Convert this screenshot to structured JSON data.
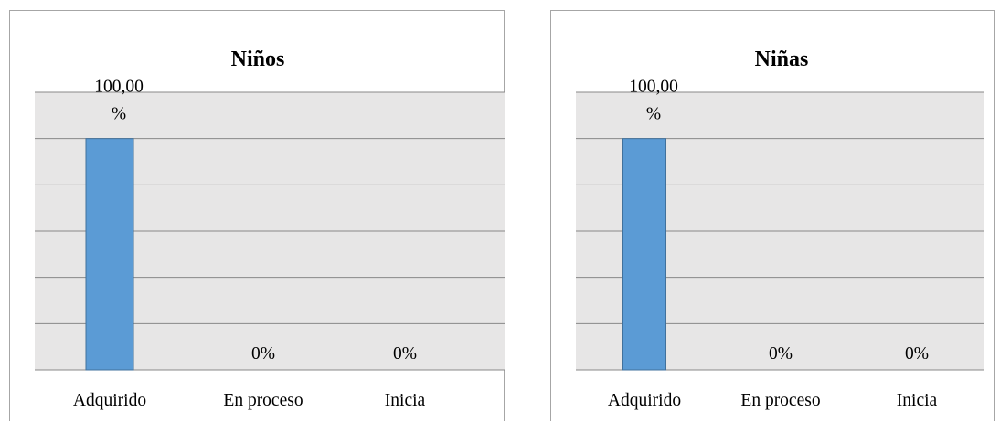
{
  "chart_data": [
    {
      "type": "bar",
      "title": "Niños",
      "categories": [
        "Adquirido",
        "En proceso",
        "Inicia"
      ],
      "values": [
        100,
        0,
        0
      ],
      "data_labels": [
        "100,00\n%",
        "0%",
        "0%"
      ],
      "ylim": [
        0,
        100
      ],
      "grid": true,
      "legend": "none",
      "colors": {
        "bar": "#5b9bd5",
        "bar_border": "#41719c",
        "plot_bg": "#e7e6e6",
        "grid": "#888888"
      }
    },
    {
      "type": "bar",
      "title": "Niñas",
      "categories": [
        "Adquirido",
        "En proceso",
        "Inicia"
      ],
      "values": [
        100,
        0,
        0
      ],
      "data_labels": [
        "100,00\n%",
        "0%",
        "0%"
      ],
      "ylim": [
        0,
        100
      ],
      "grid": true,
      "legend": "none",
      "colors": {
        "bar": "#5b9bd5",
        "bar_border": "#41719c",
        "plot_bg": "#e7e6e6",
        "grid": "#888888"
      }
    }
  ]
}
